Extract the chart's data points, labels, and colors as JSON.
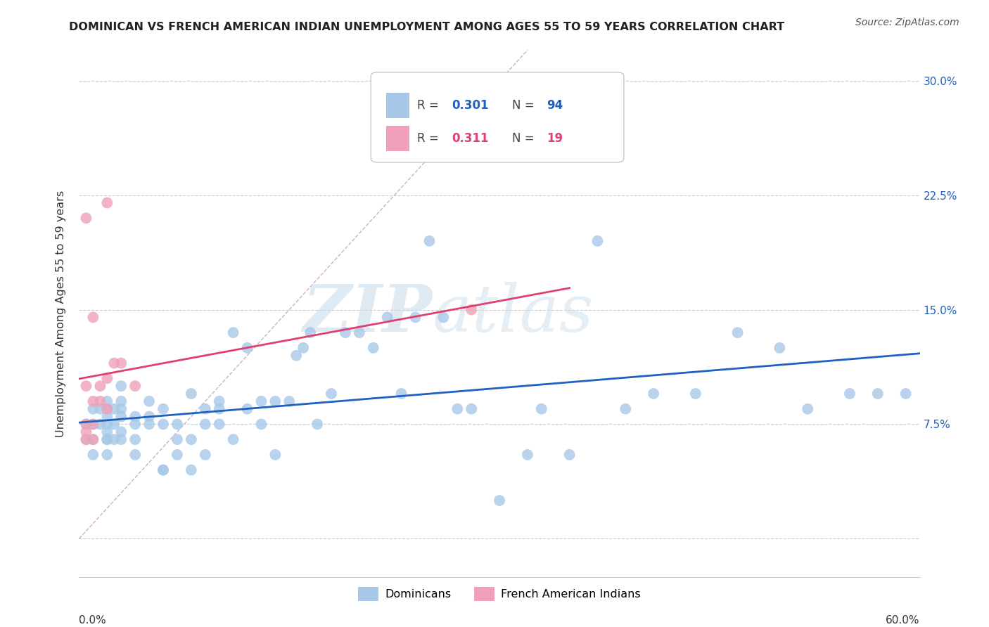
{
  "title": "DOMINICAN VS FRENCH AMERICAN INDIAN UNEMPLOYMENT AMONG AGES 55 TO 59 YEARS CORRELATION CHART",
  "source": "Source: ZipAtlas.com",
  "ylabel": "Unemployment Among Ages 55 to 59 years",
  "xlim": [
    0.0,
    0.6
  ],
  "ylim": [
    -0.025,
    0.32
  ],
  "yticks": [
    0.0,
    0.075,
    0.15,
    0.225,
    0.3
  ],
  "ytick_labels": [
    "",
    "7.5%",
    "15.0%",
    "22.5%",
    "30.0%"
  ],
  "xticks": [
    0.0,
    0.1,
    0.2,
    0.3,
    0.4,
    0.5,
    0.6
  ],
  "dominican_color": "#a8c8e8",
  "french_color": "#f0a0b8",
  "trendline_dominican_color": "#2060c0",
  "trendline_french_color": "#e04070",
  "diagonal_color": "#d0b0c0",
  "background_color": "#ffffff",
  "watermark_zip": "ZIP",
  "watermark_atlas": "atlas",
  "dominican_points_x": [
    0.005,
    0.005,
    0.01,
    0.01,
    0.01,
    0.01,
    0.015,
    0.015,
    0.02,
    0.02,
    0.02,
    0.02,
    0.02,
    0.02,
    0.02,
    0.02,
    0.025,
    0.025,
    0.025,
    0.03,
    0.03,
    0.03,
    0.03,
    0.03,
    0.03,
    0.04,
    0.04,
    0.04,
    0.04,
    0.05,
    0.05,
    0.05,
    0.06,
    0.06,
    0.06,
    0.06,
    0.07,
    0.07,
    0.07,
    0.08,
    0.08,
    0.08,
    0.09,
    0.09,
    0.09,
    0.1,
    0.1,
    0.1,
    0.11,
    0.11,
    0.12,
    0.12,
    0.13,
    0.13,
    0.14,
    0.14,
    0.15,
    0.155,
    0.16,
    0.165,
    0.17,
    0.18,
    0.19,
    0.2,
    0.21,
    0.22,
    0.23,
    0.24,
    0.25,
    0.26,
    0.27,
    0.28,
    0.3,
    0.32,
    0.33,
    0.35,
    0.37,
    0.39,
    0.41,
    0.44,
    0.47,
    0.5,
    0.52,
    0.55,
    0.57,
    0.59
  ],
  "dominican_points_y": [
    0.065,
    0.075,
    0.055,
    0.065,
    0.075,
    0.085,
    0.075,
    0.085,
    0.055,
    0.065,
    0.065,
    0.07,
    0.075,
    0.08,
    0.085,
    0.09,
    0.065,
    0.075,
    0.085,
    0.065,
    0.07,
    0.08,
    0.085,
    0.09,
    0.1,
    0.055,
    0.065,
    0.075,
    0.08,
    0.075,
    0.08,
    0.09,
    0.045,
    0.045,
    0.075,
    0.085,
    0.055,
    0.065,
    0.075,
    0.045,
    0.065,
    0.095,
    0.055,
    0.075,
    0.085,
    0.075,
    0.085,
    0.09,
    0.065,
    0.135,
    0.085,
    0.125,
    0.075,
    0.09,
    0.055,
    0.09,
    0.09,
    0.12,
    0.125,
    0.135,
    0.075,
    0.095,
    0.135,
    0.135,
    0.125,
    0.145,
    0.095,
    0.145,
    0.195,
    0.145,
    0.085,
    0.085,
    0.025,
    0.055,
    0.085,
    0.055,
    0.195,
    0.085,
    0.095,
    0.095,
    0.135,
    0.125,
    0.085,
    0.095,
    0.095,
    0.095
  ],
  "french_points_x": [
    0.005,
    0.005,
    0.005,
    0.005,
    0.005,
    0.01,
    0.01,
    0.01,
    0.01,
    0.015,
    0.015,
    0.02,
    0.02,
    0.02,
    0.025,
    0.03,
    0.04,
    0.28
  ],
  "french_points_y": [
    0.065,
    0.07,
    0.075,
    0.1,
    0.21,
    0.065,
    0.075,
    0.09,
    0.145,
    0.09,
    0.1,
    0.085,
    0.105,
    0.22,
    0.115,
    0.115,
    0.1,
    0.15
  ]
}
